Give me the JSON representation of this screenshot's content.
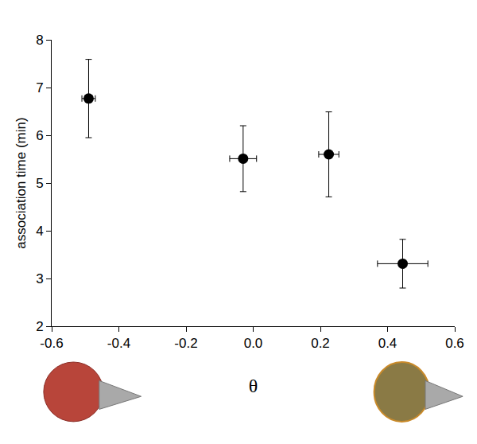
{
  "chart_data": {
    "type": "scatter",
    "x_label": "θ",
    "y_label": "association time (min)",
    "x": [
      -0.49,
      -0.03,
      0.225,
      0.445
    ],
    "values": [
      6.77,
      5.51,
      5.6,
      3.31
    ],
    "x_error": [
      0.02,
      0.04,
      0.03,
      0.075
    ],
    "y_error": [
      0.82,
      0.69,
      0.89,
      0.51
    ],
    "color": "#000000",
    "marker": "circle",
    "xlim": [
      -0.6,
      0.6
    ],
    "xticks": [
      -0.6,
      -0.4,
      -0.2,
      {
        "value": 0,
        "label": "0.0"
      },
      0.2,
      0.4,
      0.6
    ],
    "ylim": [
      2,
      8
    ],
    "yticks": [
      2,
      3,
      4,
      5,
      6,
      7,
      8
    ],
    "grid": false
  }
}
